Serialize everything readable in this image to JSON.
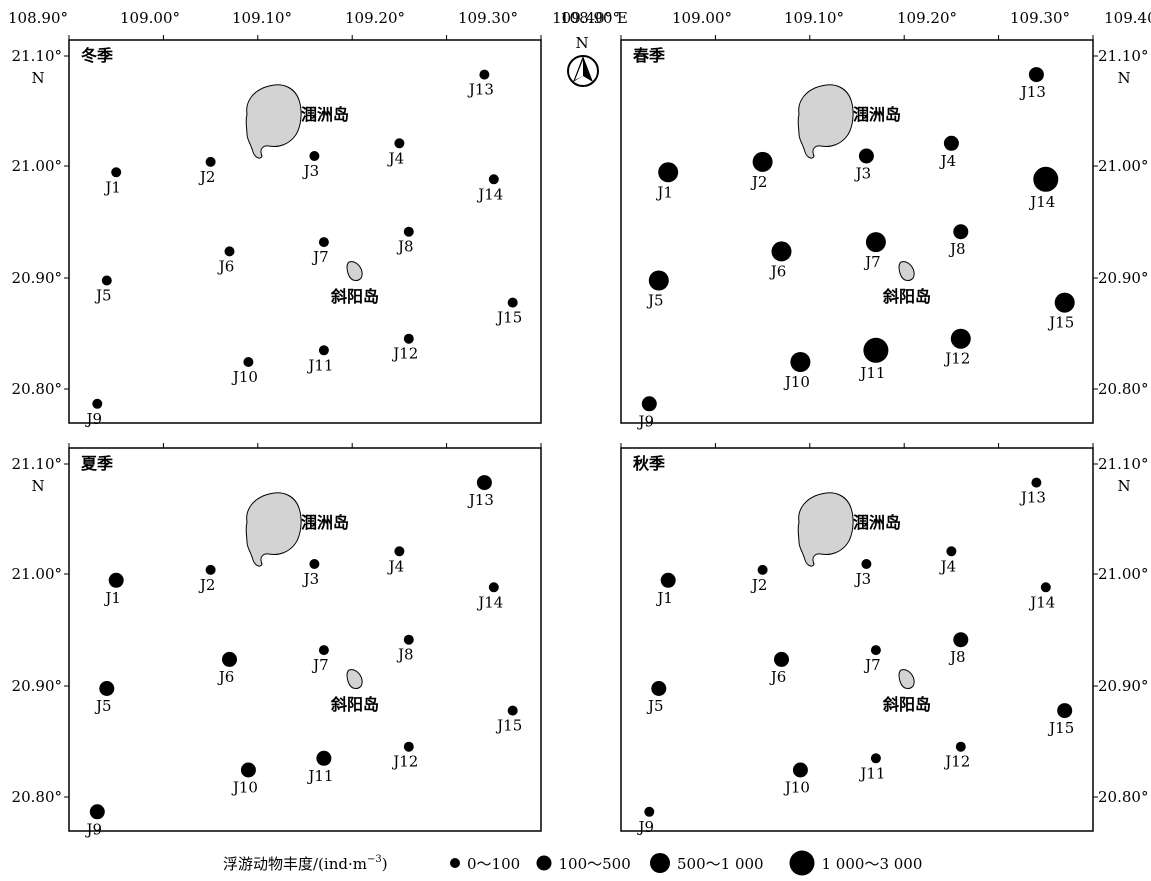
{
  "axes": {
    "top_ticks": [
      "108.90°",
      "109.00°",
      "109.10°",
      "109.20°",
      "109.30°",
      "109.40° E"
    ],
    "lat_ticks": [
      "21.10°",
      "21.00°",
      "20.90°",
      "20.80°"
    ],
    "lat_unit": "N"
  },
  "compass": {
    "label": "N"
  },
  "islands": {
    "weizhou": "涠洲岛",
    "xieyang": "斜阳岛"
  },
  "stations": [
    {
      "id": "J1",
      "lon": 108.95,
      "lat": 21.0
    },
    {
      "id": "J2",
      "lon": 109.05,
      "lat": 21.009
    },
    {
      "id": "J3",
      "lon": 109.16,
      "lat": 21.014
    },
    {
      "id": "J4",
      "lon": 109.25,
      "lat": 21.025
    },
    {
      "id": "J5",
      "lon": 108.94,
      "lat": 20.907
    },
    {
      "id": "J6",
      "lon": 109.07,
      "lat": 20.932
    },
    {
      "id": "J7",
      "lon": 109.17,
      "lat": 20.94
    },
    {
      "id": "J8",
      "lon": 109.26,
      "lat": 20.949
    },
    {
      "id": "J9",
      "lon": 108.93,
      "lat": 20.801
    },
    {
      "id": "J10",
      "lon": 109.09,
      "lat": 20.837
    },
    {
      "id": "J11",
      "lon": 109.17,
      "lat": 20.847
    },
    {
      "id": "J12",
      "lon": 109.26,
      "lat": 20.857
    },
    {
      "id": "J13",
      "lon": 109.34,
      "lat": 21.084
    },
    {
      "id": "J14",
      "lon": 109.35,
      "lat": 20.994
    },
    {
      "id": "J15",
      "lon": 109.37,
      "lat": 20.888
    }
  ],
  "seasons": [
    {
      "name": "冬季",
      "classes": [
        1,
        1,
        1,
        1,
        1,
        1,
        1,
        1,
        1,
        1,
        1,
        1,
        1,
        1,
        1
      ]
    },
    {
      "name": "春季",
      "classes": [
        3,
        3,
        2,
        2,
        3,
        3,
        3,
        2,
        2,
        3,
        4,
        3,
        2,
        4,
        3
      ]
    },
    {
      "name": "夏季",
      "classes": [
        2,
        1,
        1,
        1,
        2,
        2,
        1,
        1,
        2,
        2,
        2,
        1,
        2,
        1,
        1
      ]
    },
    {
      "name": "秋季",
      "classes": [
        2,
        1,
        1,
        1,
        2,
        2,
        1,
        2,
        1,
        2,
        1,
        1,
        1,
        1,
        2
      ]
    }
  ],
  "legend": {
    "title": "浮游动物丰度/(ind·m",
    "title_sup": "−3",
    "title_close": ")",
    "items": [
      "0～100",
      "100～500",
      "500～1 000",
      "1 000～3 000"
    ]
  },
  "colors": {
    "marker": "#000000",
    "island_fill": "#d3d3d3",
    "frame": "#000000"
  }
}
